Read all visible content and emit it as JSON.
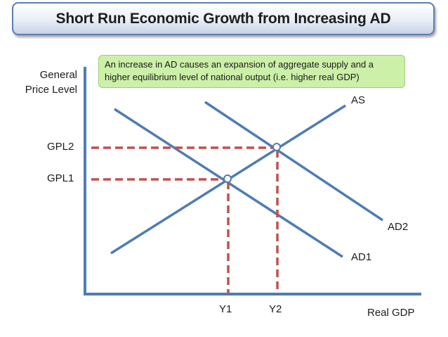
{
  "title": "Short Run Economic Growth from Increasing AD",
  "callout": {
    "line1": "An increase in AD causes an expansion of aggregate supply and a",
    "line2": "higher equilibrium level of national output (i.e. higher real GDP)"
  },
  "axes": {
    "y_label_line1": "General",
    "y_label_line2": "Price Level",
    "x_label": "Real GDP"
  },
  "curves": {
    "as": "AS",
    "ad1": "AD1",
    "ad2": "AD2"
  },
  "price_levels": {
    "gpl1": "GPL1",
    "gpl2": "GPL2"
  },
  "outputs": {
    "y1": "Y1",
    "y2": "Y2"
  },
  "colors": {
    "curve": "#4e7cb4",
    "dashed_guide": "#c0504d",
    "axis": "#4e7cb4",
    "callout_fill": "#ccf0a8",
    "title_border": "#5b7fb3"
  }
}
